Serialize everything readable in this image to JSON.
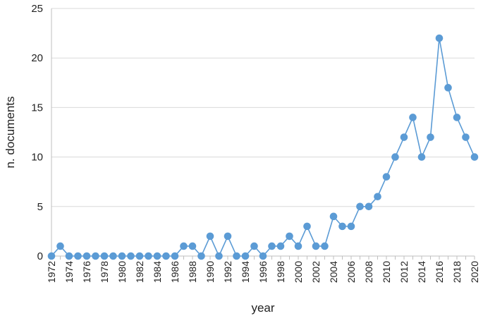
{
  "chart_data": {
    "type": "line",
    "title": "",
    "xlabel": "year",
    "ylabel": "n. documents",
    "ylim": [
      0,
      25
    ],
    "yticks": [
      0,
      5,
      10,
      15,
      20,
      25
    ],
    "x": [
      1972,
      1973,
      1974,
      1975,
      1976,
      1977,
      1978,
      1979,
      1980,
      1981,
      1982,
      1983,
      1984,
      1985,
      1986,
      1987,
      1988,
      1989,
      1990,
      1991,
      1992,
      1993,
      1994,
      1995,
      1996,
      1997,
      1998,
      1999,
      2000,
      2001,
      2002,
      2003,
      2004,
      2005,
      2006,
      2007,
      2008,
      2009,
      2010,
      2011,
      2012,
      2013,
      2014,
      2015,
      2016,
      2017,
      2018,
      2019,
      2020
    ],
    "xtick_labels": [
      "1972",
      "1974",
      "1976",
      "1978",
      "1980",
      "1982",
      "1984",
      "1986",
      "1988",
      "1990",
      "1992",
      "1994",
      "1996",
      "1998",
      "2000",
      "2002",
      "2004",
      "2006",
      "2008",
      "2010",
      "2012",
      "2014",
      "2016",
      "2018",
      "2020"
    ],
    "series": [
      {
        "values": [
          0,
          1,
          0,
          0,
          0,
          0,
          0,
          0,
          0,
          0,
          0,
          0,
          0,
          0,
          0,
          1,
          1,
          0,
          2,
          0,
          2,
          0,
          0,
          1,
          0,
          1,
          1,
          2,
          1,
          3,
          1,
          1,
          4,
          3,
          3,
          5,
          5,
          6,
          8,
          10,
          12,
          14,
          10,
          12,
          22,
          17,
          14,
          12,
          10
        ]
      }
    ],
    "grid": "horizontal",
    "legend": "none",
    "colors": {
      "line": "#5b9bd5",
      "marker": "#5b9bd5",
      "grid": "#d9d9d9",
      "axis": "#bfbfbf"
    }
  }
}
